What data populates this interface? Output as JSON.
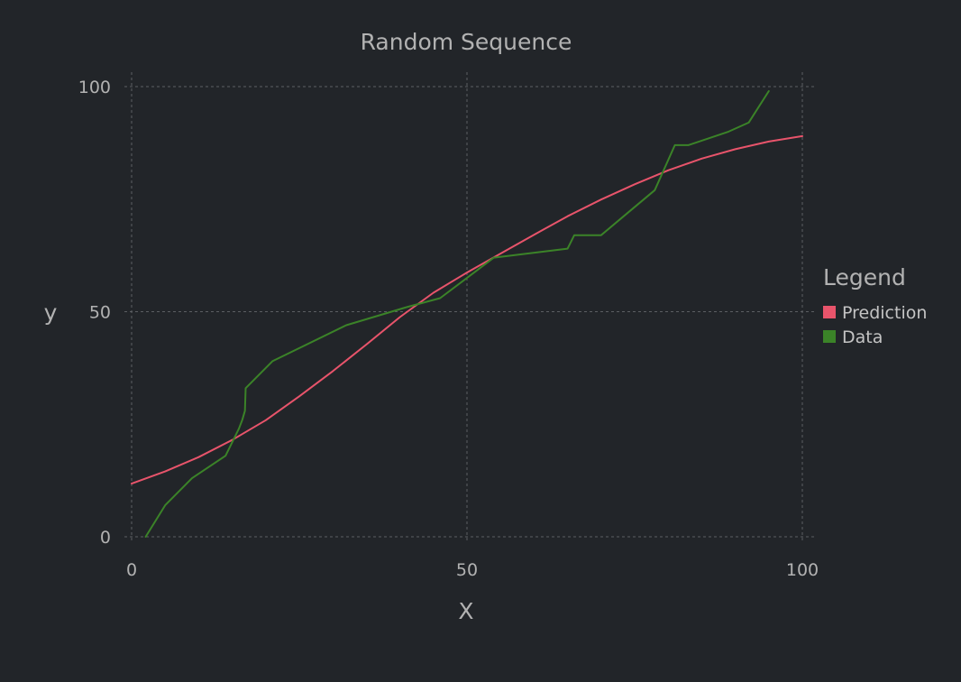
{
  "chart_data": {
    "type": "line",
    "title": "Random Sequence",
    "xlabel": "X",
    "ylabel": "y",
    "xlim": [
      0,
      100
    ],
    "ylim": [
      0,
      100
    ],
    "xticks": [
      0,
      50,
      100
    ],
    "yticks": [
      0,
      50,
      100
    ],
    "xtick_labels": [
      "0",
      "50",
      "100"
    ],
    "ytick_labels": [
      "0",
      "50",
      "100"
    ],
    "grid": true,
    "legend": {
      "title": "Legend",
      "placement": "right"
    },
    "series": [
      {
        "name": "Prediction",
        "color": "#e8546b",
        "x": [
          0,
          5,
          10,
          15,
          20,
          25,
          30,
          35,
          40,
          45,
          50,
          55,
          60,
          65,
          70,
          75,
          80,
          85,
          90,
          95,
          100
        ],
        "y": [
          11.8,
          14.5,
          17.7,
          21.5,
          25.9,
          31.2,
          36.8,
          42.7,
          48.8,
          54.2,
          58.7,
          62.9,
          67.1,
          71.2,
          74.9,
          78.3,
          81.4,
          84.0,
          86.1,
          87.8,
          89.0
        ]
      },
      {
        "name": "Data",
        "color": "#3b8328",
        "x": [
          2.1,
          5.0,
          9.0,
          14.0,
          16.0,
          16.5,
          16.9,
          17.0,
          21.0,
          32.0,
          41.0,
          46.0,
          54.0,
          65.0,
          66.0,
          70.0,
          74.0,
          78.0,
          81.0,
          83.0,
          89.0,
          92.0,
          95.0
        ],
        "y": [
          0,
          7,
          13,
          18,
          24,
          26,
          28,
          33,
          39,
          47,
          51,
          53,
          62,
          64,
          67,
          67,
          72,
          77,
          87,
          87,
          90,
          92,
          99
        ]
      }
    ]
  }
}
